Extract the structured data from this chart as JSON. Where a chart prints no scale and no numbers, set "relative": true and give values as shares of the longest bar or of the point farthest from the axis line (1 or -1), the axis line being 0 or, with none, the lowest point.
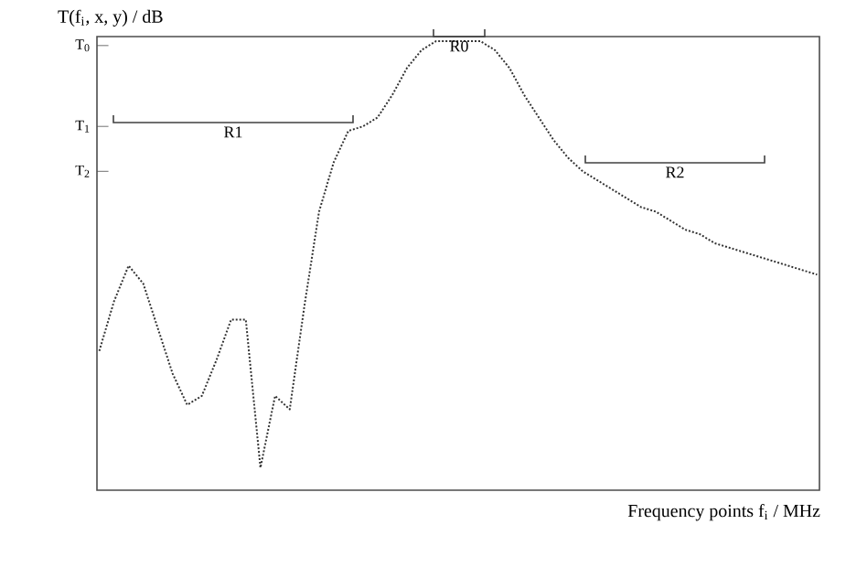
{
  "chart_data": {
    "type": "line",
    "relative": true,
    "ylabel": "T(f$_{i}$, x, y) / dB",
    "xlabel": "Frequency points  f$_{i}$ / MHz",
    "categories": [
      null,
      null,
      null,
      null,
      null,
      null,
      null,
      null,
      null,
      null,
      null,
      null,
      null,
      null,
      null,
      null,
      null,
      null,
      null,
      null,
      null,
      null,
      null,
      null,
      null,
      null,
      null,
      null,
      null,
      null,
      null,
      null,
      null,
      null,
      null,
      null,
      null,
      null,
      null,
      null,
      null,
      null,
      null,
      null,
      null,
      null,
      null,
      null,
      null,
      null
    ],
    "values": [
      0.31,
      0.42,
      0.5,
      0.46,
      0.36,
      0.26,
      0.19,
      0.21,
      0.29,
      0.38,
      0.38,
      0.05,
      0.21,
      0.18,
      0.41,
      0.62,
      0.73,
      0.8,
      0.81,
      0.83,
      0.88,
      0.94,
      0.98,
      1.0,
      1.0,
      1.0,
      1.0,
      0.98,
      0.94,
      0.88,
      0.83,
      0.78,
      0.74,
      0.71,
      0.69,
      0.67,
      0.65,
      0.63,
      0.62,
      0.6,
      0.58,
      0.57,
      0.55,
      0.54,
      0.53,
      0.52,
      0.51,
      0.5,
      0.49,
      0.48
    ],
    "color": "#333333",
    "line_style": "dotted",
    "ref_lines": [
      {
        "axis": "y",
        "value": 0.99,
        "label": "T$_{0}$"
      },
      {
        "axis": "y",
        "value": 0.81,
        "label": "T$_{1}$"
      },
      {
        "axis": "y",
        "value": 0.71,
        "label": "T$_{2}$"
      }
    ],
    "annotations": [
      "R1",
      "R0",
      "R2"
    ]
  }
}
